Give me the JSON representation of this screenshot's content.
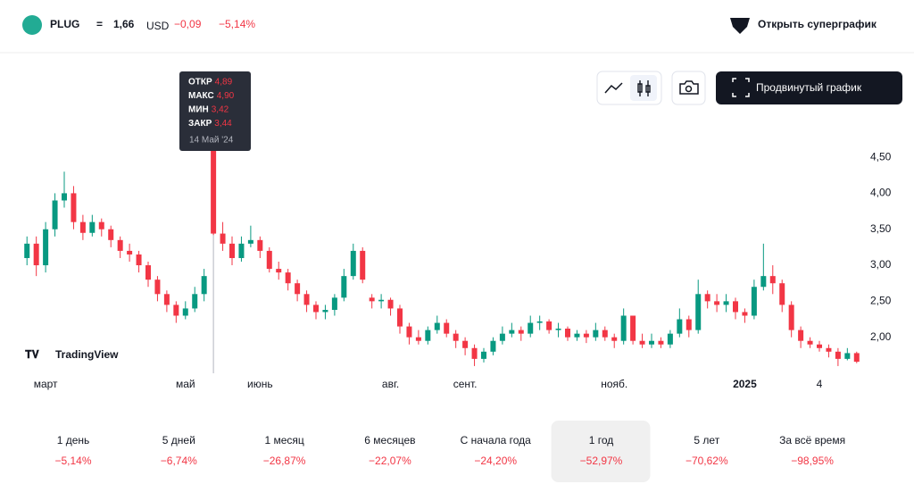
{
  "header": {
    "ticker": "PLUG",
    "equals": "=",
    "price": "1,66",
    "currency": "USD",
    "change": "−0,09",
    "change_pct": "−5,14%",
    "supergraph": "Открыть суперграфик",
    "advanced": "Продвинутый график",
    "brand": "TradingView"
  },
  "tooltip": {
    "rows": [
      {
        "label": "ОТКР",
        "value": "4,89"
      },
      {
        "label": "МАКС",
        "value": "4,90"
      },
      {
        "label": "МИН",
        "value": "3,42"
      },
      {
        "label": "ЗАКР",
        "value": "3,44"
      }
    ],
    "date": "14 Май '24"
  },
  "periods": [
    {
      "label": "1 день",
      "change": "−5,14%"
    },
    {
      "label": "5 дней",
      "change": "−6,74%"
    },
    {
      "label": "1 месяц",
      "change": "−26,87%"
    },
    {
      "label": "6 месяцев",
      "change": "−22,07%"
    },
    {
      "label": "С начала года",
      "change": "−24,20%"
    },
    {
      "label": "1 год",
      "change": "−52,97%",
      "selected": true
    },
    {
      "label": "5 лет",
      "change": "−70,62%"
    },
    {
      "label": "За всё время",
      "change": "−98,95%"
    }
  ],
  "chart_data": {
    "type": "candlestick",
    "up_color": "#089981",
    "down_color": "#f23645",
    "ylim": [
      1.5,
      4.65
    ],
    "yticks": [
      {
        "value": 2,
        "label": "2,00"
      },
      {
        "value": 2.5,
        "label": "2,50"
      },
      {
        "value": 3,
        "label": "3,00"
      },
      {
        "value": 3.5,
        "label": "3,50"
      },
      {
        "value": 4,
        "label": "4,00"
      },
      {
        "value": 4.5,
        "label": "4,50"
      }
    ],
    "categories": [
      null,
      null,
      "март",
      null,
      null,
      null,
      null,
      null,
      null,
      null,
      null,
      null,
      null,
      null,
      null,
      null,
      null,
      "май",
      null,
      null,
      null,
      null,
      null,
      null,
      null,
      "июнь",
      null,
      null,
      null,
      null,
      null,
      null,
      null,
      null,
      null,
      null,
      null,
      null,
      null,
      "авг.",
      null,
      null,
      null,
      null,
      null,
      null,
      null,
      "сент.",
      null,
      null,
      null,
      null,
      null,
      null,
      null,
      null,
      null,
      null,
      null,
      null,
      null,
      null,
      null,
      "нояб.",
      null,
      null,
      null,
      null,
      null,
      null,
      null,
      null,
      null,
      null,
      null,
      null,
      null,
      "2025",
      null,
      null,
      null,
      null,
      null,
      null,
      null,
      "4",
      null,
      null,
      null,
      null
    ],
    "open": [
      3.1,
      3.3,
      3.0,
      3.5,
      3.9,
      4.0,
      3.6,
      3.45,
      3.6,
      3.5,
      3.35,
      3.2,
      3.15,
      3.0,
      2.8,
      2.6,
      2.45,
      2.3,
      2.4,
      2.6,
      4.89,
      3.44,
      3.3,
      3.1,
      3.3,
      3.35,
      3.2,
      2.95,
      2.9,
      2.75,
      2.6,
      2.45,
      2.35,
      2.38,
      2.55,
      2.85,
      3.2,
      2.55,
      2.5,
      2.52,
      2.4,
      2.15,
      2.0,
      1.95,
      2.1,
      2.2,
      2.05,
      1.95,
      1.85,
      1.7,
      1.8,
      1.95,
      2.05,
      2.1,
      2.05,
      2.2,
      2.22,
      2.1,
      2.12,
      2.0,
      2.05,
      2.0,
      2.1,
      2.0,
      1.95,
      2.3,
      1.95,
      1.9,
      1.95,
      1.9,
      2.05,
      2.25,
      2.1,
      2.6,
      2.5,
      2.45,
      2.5,
      2.35,
      2.3,
      2.7,
      2.85,
      2.75,
      2.45,
      2.1,
      1.95,
      1.9,
      1.85,
      1.8,
      1.7,
      1.78
    ],
    "high": [
      3.4,
      3.4,
      3.6,
      4.0,
      4.3,
      4.1,
      3.7,
      3.7,
      3.65,
      3.55,
      3.4,
      3.3,
      3.2,
      3.05,
      2.85,
      2.65,
      2.5,
      2.5,
      2.7,
      2.95,
      4.9,
      3.6,
      3.4,
      3.4,
      3.55,
      3.4,
      3.25,
      3.05,
      2.95,
      2.8,
      2.65,
      2.5,
      2.45,
      2.6,
      2.95,
      3.3,
      3.25,
      2.6,
      2.6,
      2.55,
      2.45,
      2.2,
      2.1,
      2.15,
      2.3,
      2.25,
      2.1,
      2.0,
      1.9,
      1.85,
      2.0,
      2.15,
      2.2,
      2.15,
      2.3,
      2.3,
      2.25,
      2.2,
      2.15,
      2.1,
      2.1,
      2.2,
      2.15,
      2.05,
      2.4,
      2.3,
      2.05,
      2.05,
      2.0,
      2.1,
      2.4,
      2.3,
      2.8,
      2.65,
      2.6,
      2.6,
      2.55,
      2.4,
      2.8,
      3.3,
      3.0,
      2.8,
      2.5,
      2.15,
      2.0,
      1.95,
      1.9,
      1.85,
      1.85,
      1.8
    ],
    "low": [
      3.0,
      2.85,
      2.9,
      3.4,
      3.8,
      3.5,
      3.35,
      3.4,
      3.4,
      3.25,
      3.1,
      3.05,
      2.9,
      2.7,
      2.5,
      2.35,
      2.2,
      2.25,
      2.35,
      2.5,
      3.42,
      3.2,
      3.0,
      3.05,
      3.25,
      3.1,
      2.9,
      2.8,
      2.65,
      2.5,
      2.35,
      2.25,
      2.25,
      2.3,
      2.5,
      2.8,
      2.75,
      2.4,
      2.4,
      2.3,
      2.05,
      1.9,
      1.9,
      1.9,
      2.05,
      2.0,
      1.85,
      1.75,
      1.6,
      1.65,
      1.75,
      1.9,
      2.0,
      1.95,
      2.0,
      2.1,
      2.05,
      2.0,
      1.95,
      1.95,
      1.92,
      1.95,
      1.95,
      1.85,
      1.9,
      1.9,
      1.85,
      1.85,
      1.85,
      1.85,
      2.0,
      2.0,
      2.05,
      2.4,
      2.35,
      2.35,
      2.25,
      2.2,
      2.25,
      2.65,
      2.6,
      2.35,
      2.0,
      1.85,
      1.85,
      1.8,
      1.72,
      1.6,
      1.68,
      1.64
    ],
    "close": [
      3.3,
      3.0,
      3.5,
      3.9,
      4.0,
      3.6,
      3.45,
      3.6,
      3.5,
      3.35,
      3.2,
      3.15,
      3.0,
      2.8,
      2.6,
      2.45,
      2.3,
      2.4,
      2.6,
      2.85,
      3.44,
      3.3,
      3.1,
      3.3,
      3.35,
      3.2,
      2.95,
      2.9,
      2.75,
      2.6,
      2.45,
      2.35,
      2.38,
      2.55,
      2.85,
      3.2,
      2.8,
      2.5,
      2.52,
      2.4,
      2.15,
      2.0,
      1.95,
      2.1,
      2.2,
      2.05,
      1.95,
      1.85,
      1.7,
      1.8,
      1.95,
      2.05,
      2.1,
      2.05,
      2.2,
      2.22,
      2.1,
      2.12,
      2.0,
      2.05,
      2.0,
      2.1,
      2.0,
      1.95,
      2.3,
      1.95,
      1.9,
      1.95,
      1.9,
      2.05,
      2.25,
      2.1,
      2.6,
      2.5,
      2.45,
      2.5,
      2.35,
      2.3,
      2.7,
      2.85,
      2.75,
      2.45,
      2.1,
      1.95,
      1.9,
      1.85,
      1.8,
      1.7,
      1.78,
      1.66
    ],
    "highlight": 20
  }
}
